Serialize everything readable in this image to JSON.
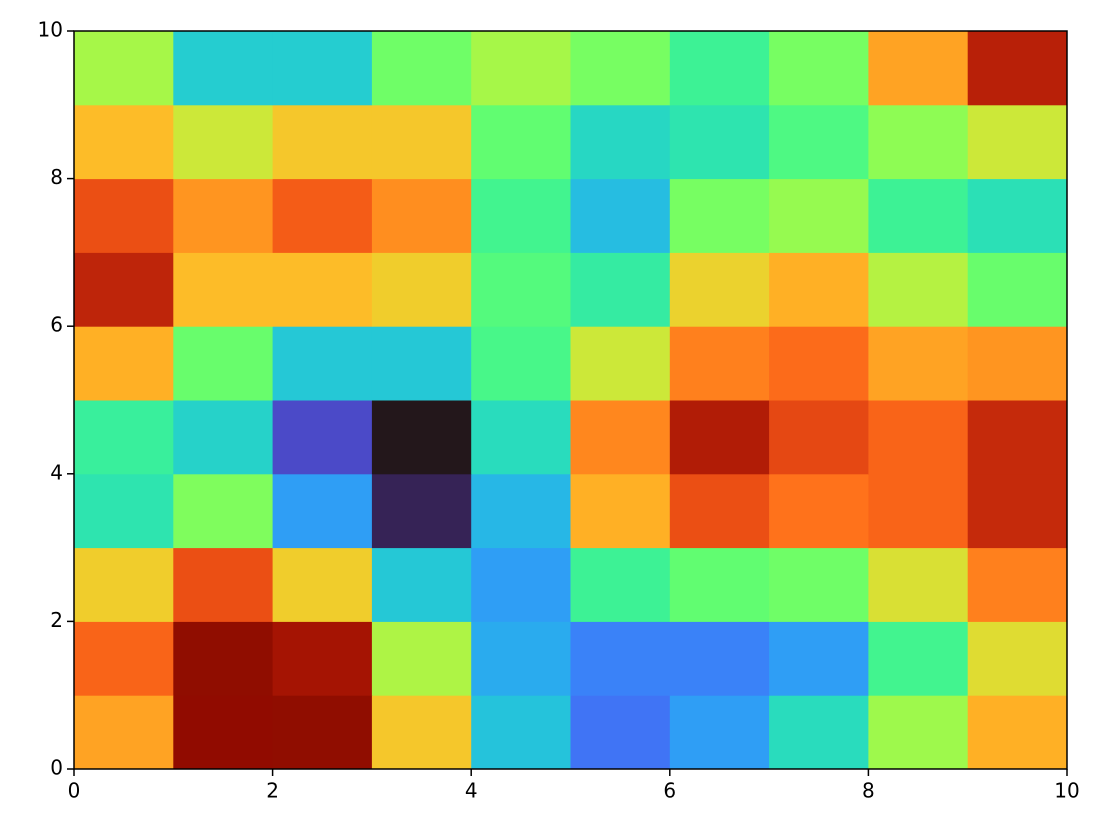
{
  "chart_data": {
    "type": "heatmap",
    "colormap": "turbo",
    "xlim": [
      0,
      10
    ],
    "ylim": [
      0,
      10
    ],
    "xticks": [
      0,
      2,
      4,
      6,
      8,
      10
    ],
    "yticks": [
      0,
      2,
      4,
      6,
      8,
      10
    ],
    "z": [
      [
        0.7,
        0.98,
        1.0,
        0.64,
        0.26,
        0.14,
        0.2,
        0.31,
        0.51,
        0.68
      ],
      [
        0.79,
        1.0,
        0.93,
        0.53,
        0.22,
        0.16,
        0.16,
        0.2,
        0.38,
        0.6
      ],
      [
        0.63,
        0.82,
        0.63,
        0.27,
        0.2,
        0.37,
        0.43,
        0.45,
        0.59,
        0.75
      ],
      [
        0.33,
        0.47,
        0.2,
        0.02,
        0.24,
        0.68,
        0.82,
        0.77,
        0.79,
        0.88
      ],
      [
        0.36,
        0.29,
        0.08,
        0.0,
        0.31,
        0.74,
        0.91,
        0.83,
        0.79,
        0.88
      ],
      [
        0.68,
        0.44,
        0.27,
        0.27,
        0.39,
        0.57,
        0.75,
        0.78,
        0.7,
        0.72
      ],
      [
        0.89,
        0.66,
        0.66,
        0.63,
        0.41,
        0.35,
        0.62,
        0.68,
        0.54,
        0.44
      ],
      [
        0.82,
        0.72,
        0.8,
        0.73,
        0.38,
        0.25,
        0.46,
        0.5,
        0.37,
        0.32
      ],
      [
        0.66,
        0.57,
        0.64,
        0.64,
        0.43,
        0.3,
        0.33,
        0.4,
        0.49,
        0.57
      ],
      [
        0.52,
        0.28,
        0.28,
        0.45,
        0.52,
        0.46,
        0.37,
        0.46,
        0.7,
        0.9
      ]
    ]
  }
}
